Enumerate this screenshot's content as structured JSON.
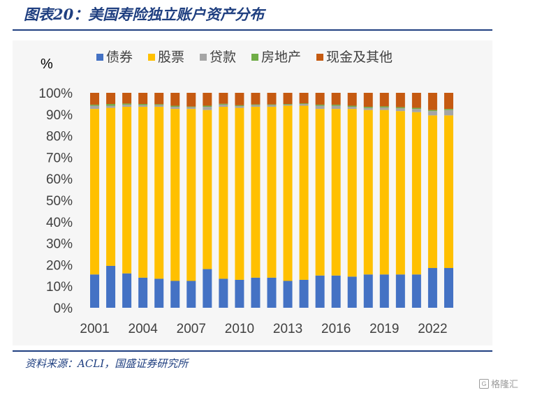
{
  "header": {
    "title": "图表20：美国寿险独立账户资产分布"
  },
  "source": {
    "text": "资料来源：ACLI，国盛证券研究所"
  },
  "watermark": {
    "text": "格隆汇"
  },
  "chart_data": {
    "type": "bar",
    "stacked": true,
    "percent": true,
    "title": "",
    "ylabel": "%",
    "ylim": [
      0,
      100
    ],
    "yticks": [
      "0%",
      "10%",
      "20%",
      "30%",
      "40%",
      "50%",
      "60%",
      "70%",
      "80%",
      "90%",
      "100%"
    ],
    "xtick_labels": [
      "2001",
      "2004",
      "2007",
      "2010",
      "2013",
      "2016",
      "2019",
      "2022"
    ],
    "categories": [
      "2001",
      "2002",
      "2003",
      "2004",
      "2005",
      "2006",
      "2007",
      "2008",
      "2009",
      "2010",
      "2011",
      "2012",
      "2013",
      "2014",
      "2015",
      "2016",
      "2017",
      "2018",
      "2019",
      "2020",
      "2021",
      "2022",
      "2023"
    ],
    "grid": false,
    "legend_position": "top",
    "series": [
      {
        "name": "债券",
        "color": "#4472c4",
        "values": [
          15.5,
          19.5,
          16.0,
          14.0,
          13.5,
          12.5,
          12.5,
          18.0,
          13.5,
          13.0,
          14.0,
          14.0,
          12.5,
          13.0,
          15.0,
          15.0,
          14.5,
          15.5,
          15.5,
          15.5,
          15.5,
          18.5,
          18.5
        ]
      },
      {
        "name": "股票",
        "color": "#ffc000",
        "values": [
          77.0,
          73.5,
          77.5,
          79.5,
          80.0,
          80.0,
          80.0,
          74.0,
          80.0,
          80.0,
          79.5,
          79.5,
          81.5,
          81.0,
          77.5,
          77.5,
          78.0,
          76.5,
          76.5,
          76.0,
          75.5,
          71.0,
          71.0
        ]
      },
      {
        "name": "贷款",
        "color": "#a5a5a5",
        "values": [
          1.5,
          1.0,
          1.0,
          0.8,
          0.8,
          1.0,
          0.8,
          1.5,
          1.0,
          0.8,
          0.8,
          0.8,
          0.5,
          0.8,
          1.5,
          1.5,
          1.0,
          1.0,
          1.2,
          1.3,
          1.5,
          2.0,
          2.5
        ]
      },
      {
        "name": "房地产",
        "color": "#70ad47",
        "values": [
          0.5,
          0.8,
          0.5,
          0.5,
          0.4,
          0.5,
          0.3,
          0.5,
          0.4,
          0.4,
          0.3,
          0.3,
          0.3,
          0.3,
          0.5,
          0.5,
          0.5,
          0.5,
          0.5,
          0.5,
          0.5,
          0.5,
          0.5
        ]
      },
      {
        "name": "现金及其他",
        "color": "#c55a11",
        "values": [
          5.5,
          5.2,
          5.0,
          5.2,
          5.3,
          6.0,
          6.4,
          6.0,
          5.1,
          5.8,
          5.4,
          5.4,
          5.2,
          4.9,
          5.5,
          5.5,
          6.0,
          6.5,
          6.3,
          6.7,
          7.0,
          8.0,
          7.5
        ]
      }
    ]
  }
}
